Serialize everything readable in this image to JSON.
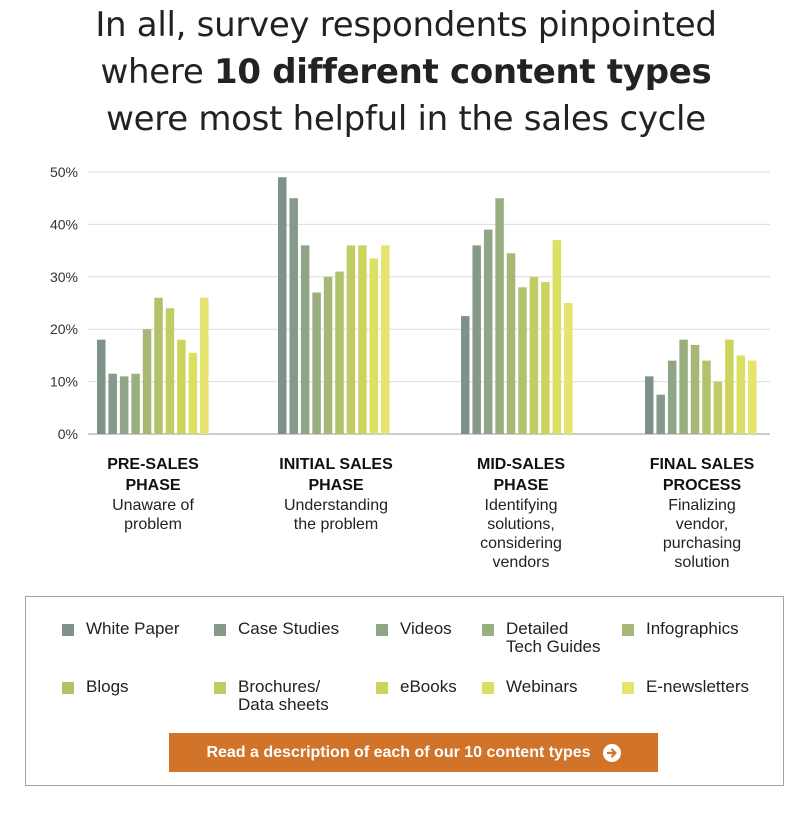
{
  "title": {
    "line1": "In all, survey respondents pinpointed",
    "line2_pre": "where ",
    "line2_bold": "10 different content types",
    "line3": "were most helpful in the sales cycle"
  },
  "legend": {
    "items": [
      {
        "label": "White Paper",
        "color": "#7e9289"
      },
      {
        "label": "Case Studies",
        "color": "#869a8b"
      },
      {
        "label": "Videos",
        "color": "#8ea588"
      },
      {
        "label": "Detailed\nTech Guides",
        "color": "#9aaf80"
      },
      {
        "label": "Infographics",
        "color": "#a7b876"
      },
      {
        "label": "Blogs",
        "color": "#b2c26b"
      },
      {
        "label": "Brochures/\nData sheets",
        "color": "#c1cc64"
      },
      {
        "label": "eBooks",
        "color": "#ccd45e"
      },
      {
        "label": "Webinars",
        "color": "#dbdf62"
      },
      {
        "label": "E-newsletters",
        "color": "#e6e46e"
      }
    ]
  },
  "cta": {
    "label": "Read a description of each of our 10 content types",
    "icon": "arrow-right-circle-icon"
  },
  "chart_data": {
    "type": "bar",
    "title": "In all, survey respondents pinpointed where 10 different content types were most helpful in the sales cycle",
    "ylabel": "",
    "ylim": [
      0,
      50
    ],
    "yticks": [
      "0%",
      "10%",
      "20%",
      "30%",
      "40%",
      "50%"
    ],
    "grid": true,
    "categories": [
      {
        "name": "PRE-SALES\nPHASE",
        "desc": "Unaware of\nproblem"
      },
      {
        "name": "INITIAL SALES\nPHASE",
        "desc": "Understanding\nthe problem"
      },
      {
        "name": "MID-SALES\nPHASE",
        "desc": "Identifying\nsolutions,\nconsidering\nvendors"
      },
      {
        "name": "FINAL SALES\nPROCESS",
        "desc": "Finalizing\nvendor,\npurchasing\nsolution"
      }
    ],
    "series": [
      {
        "name": "White Paper",
        "values": [
          18,
          49,
          22.5,
          11
        ]
      },
      {
        "name": "Case Studies",
        "values": [
          11.5,
          45,
          36,
          7.5
        ]
      },
      {
        "name": "Videos",
        "values": [
          11,
          36,
          39,
          14
        ]
      },
      {
        "name": "Detailed Tech Guides",
        "values": [
          11.5,
          27,
          45,
          18
        ]
      },
      {
        "name": "Infographics",
        "values": [
          20,
          30,
          34.5,
          17
        ]
      },
      {
        "name": "Blogs",
        "values": [
          26,
          31,
          28,
          14
        ]
      },
      {
        "name": "Brochures/Data sheets",
        "values": [
          24,
          36,
          30,
          10
        ]
      },
      {
        "name": "eBooks",
        "values": [
          18,
          36,
          29,
          18
        ]
      },
      {
        "name": "Webinars",
        "values": [
          15.5,
          33.5,
          37,
          15
        ]
      },
      {
        "name": "E-newsletters",
        "values": [
          26,
          36,
          25,
          14
        ]
      }
    ]
  }
}
